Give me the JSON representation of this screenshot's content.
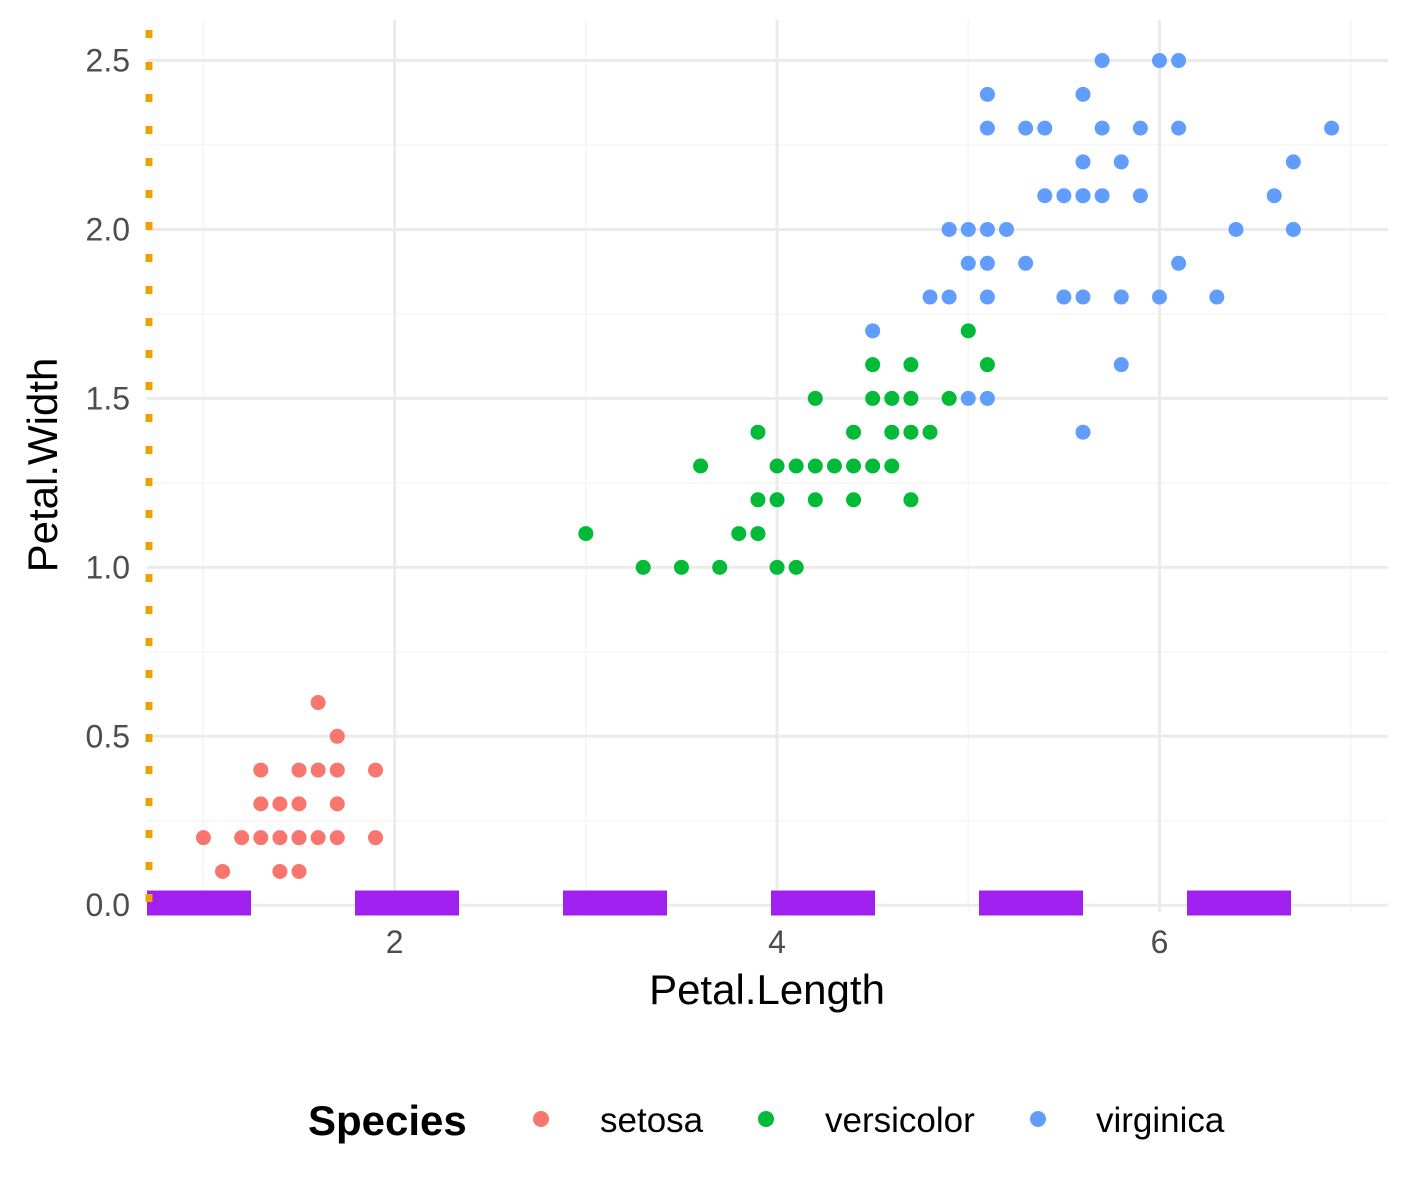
{
  "chart_data": {
    "type": "scatter",
    "title": "",
    "xlabel": "Petal.Length",
    "ylabel": "Petal.Width",
    "xlim": [
      0.705,
      7.195
    ],
    "ylim": [
      -0.02,
      2.62
    ],
    "x_ticks": [
      2,
      4,
      6
    ],
    "x_tick_labels": [
      "2",
      "4",
      "6"
    ],
    "y_ticks": [
      0,
      0.5,
      1,
      1.5,
      2,
      2.5
    ],
    "y_tick_labels": [
      "0.0",
      "0.5",
      "1.0",
      "1.5",
      "2.0",
      "2.5"
    ],
    "grid": true,
    "legend": {
      "title": "Species",
      "position": "bottom"
    },
    "x_rug": {
      "color": "#a020f0",
      "style": "dashed"
    },
    "y_rug": {
      "color": "#f0a000",
      "style": "dotted"
    },
    "series": [
      {
        "name": "setosa",
        "color": "#f8766d",
        "x": [
          1.0,
          1.1,
          1.2,
          1.3,
          1.3,
          1.3,
          1.4,
          1.4,
          1.4,
          1.5,
          1.5,
          1.5,
          1.5,
          1.5,
          1.6,
          1.6,
          1.6,
          1.7,
          1.7,
          1.7,
          1.7,
          1.9,
          1.9
        ],
        "y": [
          0.2,
          0.1,
          0.2,
          0.2,
          0.3,
          0.4,
          0.1,
          0.2,
          0.3,
          0.1,
          0.2,
          0.3,
          0.4,
          0.2,
          0.2,
          0.4,
          0.6,
          0.2,
          0.3,
          0.4,
          0.5,
          0.2,
          0.4
        ]
      },
      {
        "name": "versicolor",
        "color": "#00ba38",
        "x": [
          3.0,
          3.3,
          3.5,
          3.6,
          3.7,
          3.8,
          3.9,
          3.9,
          3.9,
          4.0,
          4.0,
          4.0,
          4.1,
          4.1,
          4.2,
          4.2,
          4.2,
          4.3,
          4.4,
          4.4,
          4.4,
          4.5,
          4.5,
          4.5,
          4.6,
          4.6,
          4.6,
          4.7,
          4.7,
          4.7,
          4.7,
          4.8,
          4.9,
          5.0,
          5.1
        ],
        "y": [
          1.1,
          1.0,
          1.0,
          1.3,
          1.0,
          1.1,
          1.1,
          1.2,
          1.4,
          1.0,
          1.2,
          1.3,
          1.0,
          1.3,
          1.2,
          1.3,
          1.5,
          1.3,
          1.2,
          1.3,
          1.4,
          1.3,
          1.5,
          1.6,
          1.3,
          1.4,
          1.5,
          1.2,
          1.4,
          1.5,
          1.6,
          1.4,
          1.5,
          1.7,
          1.6
        ]
      },
      {
        "name": "virginica",
        "color": "#619cff",
        "x": [
          4.5,
          4.8,
          4.9,
          4.9,
          5.0,
          5.0,
          5.0,
          5.1,
          5.1,
          5.1,
          5.1,
          5.1,
          5.1,
          5.2,
          5.3,
          5.3,
          5.4,
          5.4,
          5.5,
          5.5,
          5.6,
          5.6,
          5.6,
          5.6,
          5.6,
          5.6,
          5.7,
          5.7,
          5.7,
          5.8,
          5.8,
          5.8,
          5.9,
          5.9,
          6.0,
          6.0,
          6.1,
          6.1,
          6.1,
          6.3,
          6.4,
          6.6,
          6.7,
          6.7,
          6.9
        ],
        "y": [
          1.7,
          1.8,
          1.8,
          2.0,
          1.5,
          1.9,
          2.0,
          1.5,
          1.8,
          1.9,
          2.0,
          2.3,
          2.4,
          2.0,
          1.9,
          2.3,
          2.1,
          2.3,
          1.8,
          2.1,
          1.4,
          1.8,
          2.1,
          2.2,
          2.4,
          2.1,
          2.1,
          2.3,
          2.5,
          1.6,
          1.8,
          2.2,
          2.1,
          2.3,
          1.8,
          2.5,
          1.9,
          2.3,
          2.5,
          1.8,
          2.0,
          2.1,
          2.0,
          2.2,
          2.3
        ]
      }
    ]
  }
}
